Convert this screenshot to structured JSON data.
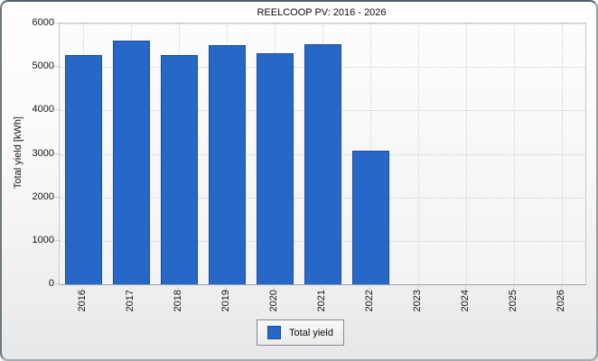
{
  "window": {
    "background": "#ffffff",
    "panel_border_top": "#51606a",
    "panel_border_side": "#8a939b"
  },
  "chart_data": {
    "type": "bar",
    "title": "REELCOOP PV: 2016 - 2026",
    "xlabel": "",
    "ylabel": "Total yield [kWh]",
    "categories": [
      "2016",
      "2017",
      "2018",
      "2019",
      "2020",
      "2021",
      "2022",
      "2023",
      "2024",
      "2025",
      "2026"
    ],
    "values": [
      5270,
      5600,
      5280,
      5510,
      5310,
      5520,
      3070,
      null,
      null,
      null,
      null
    ],
    "ylim": [
      0,
      6000
    ],
    "ytick_step": 1000,
    "ytick_labels": [
      "0",
      "1000",
      "2000",
      "3000",
      "4000",
      "5000",
      "6000"
    ],
    "grid": true,
    "grid_style": "dotted",
    "bar_color": "#2767c8",
    "bar_border_color": "#1b4c9f",
    "plot_background": "#f8f8f9",
    "legend": {
      "position": "bottom-center",
      "entries": [
        {
          "label": "Total yield",
          "color": "#2767c8"
        }
      ]
    }
  }
}
